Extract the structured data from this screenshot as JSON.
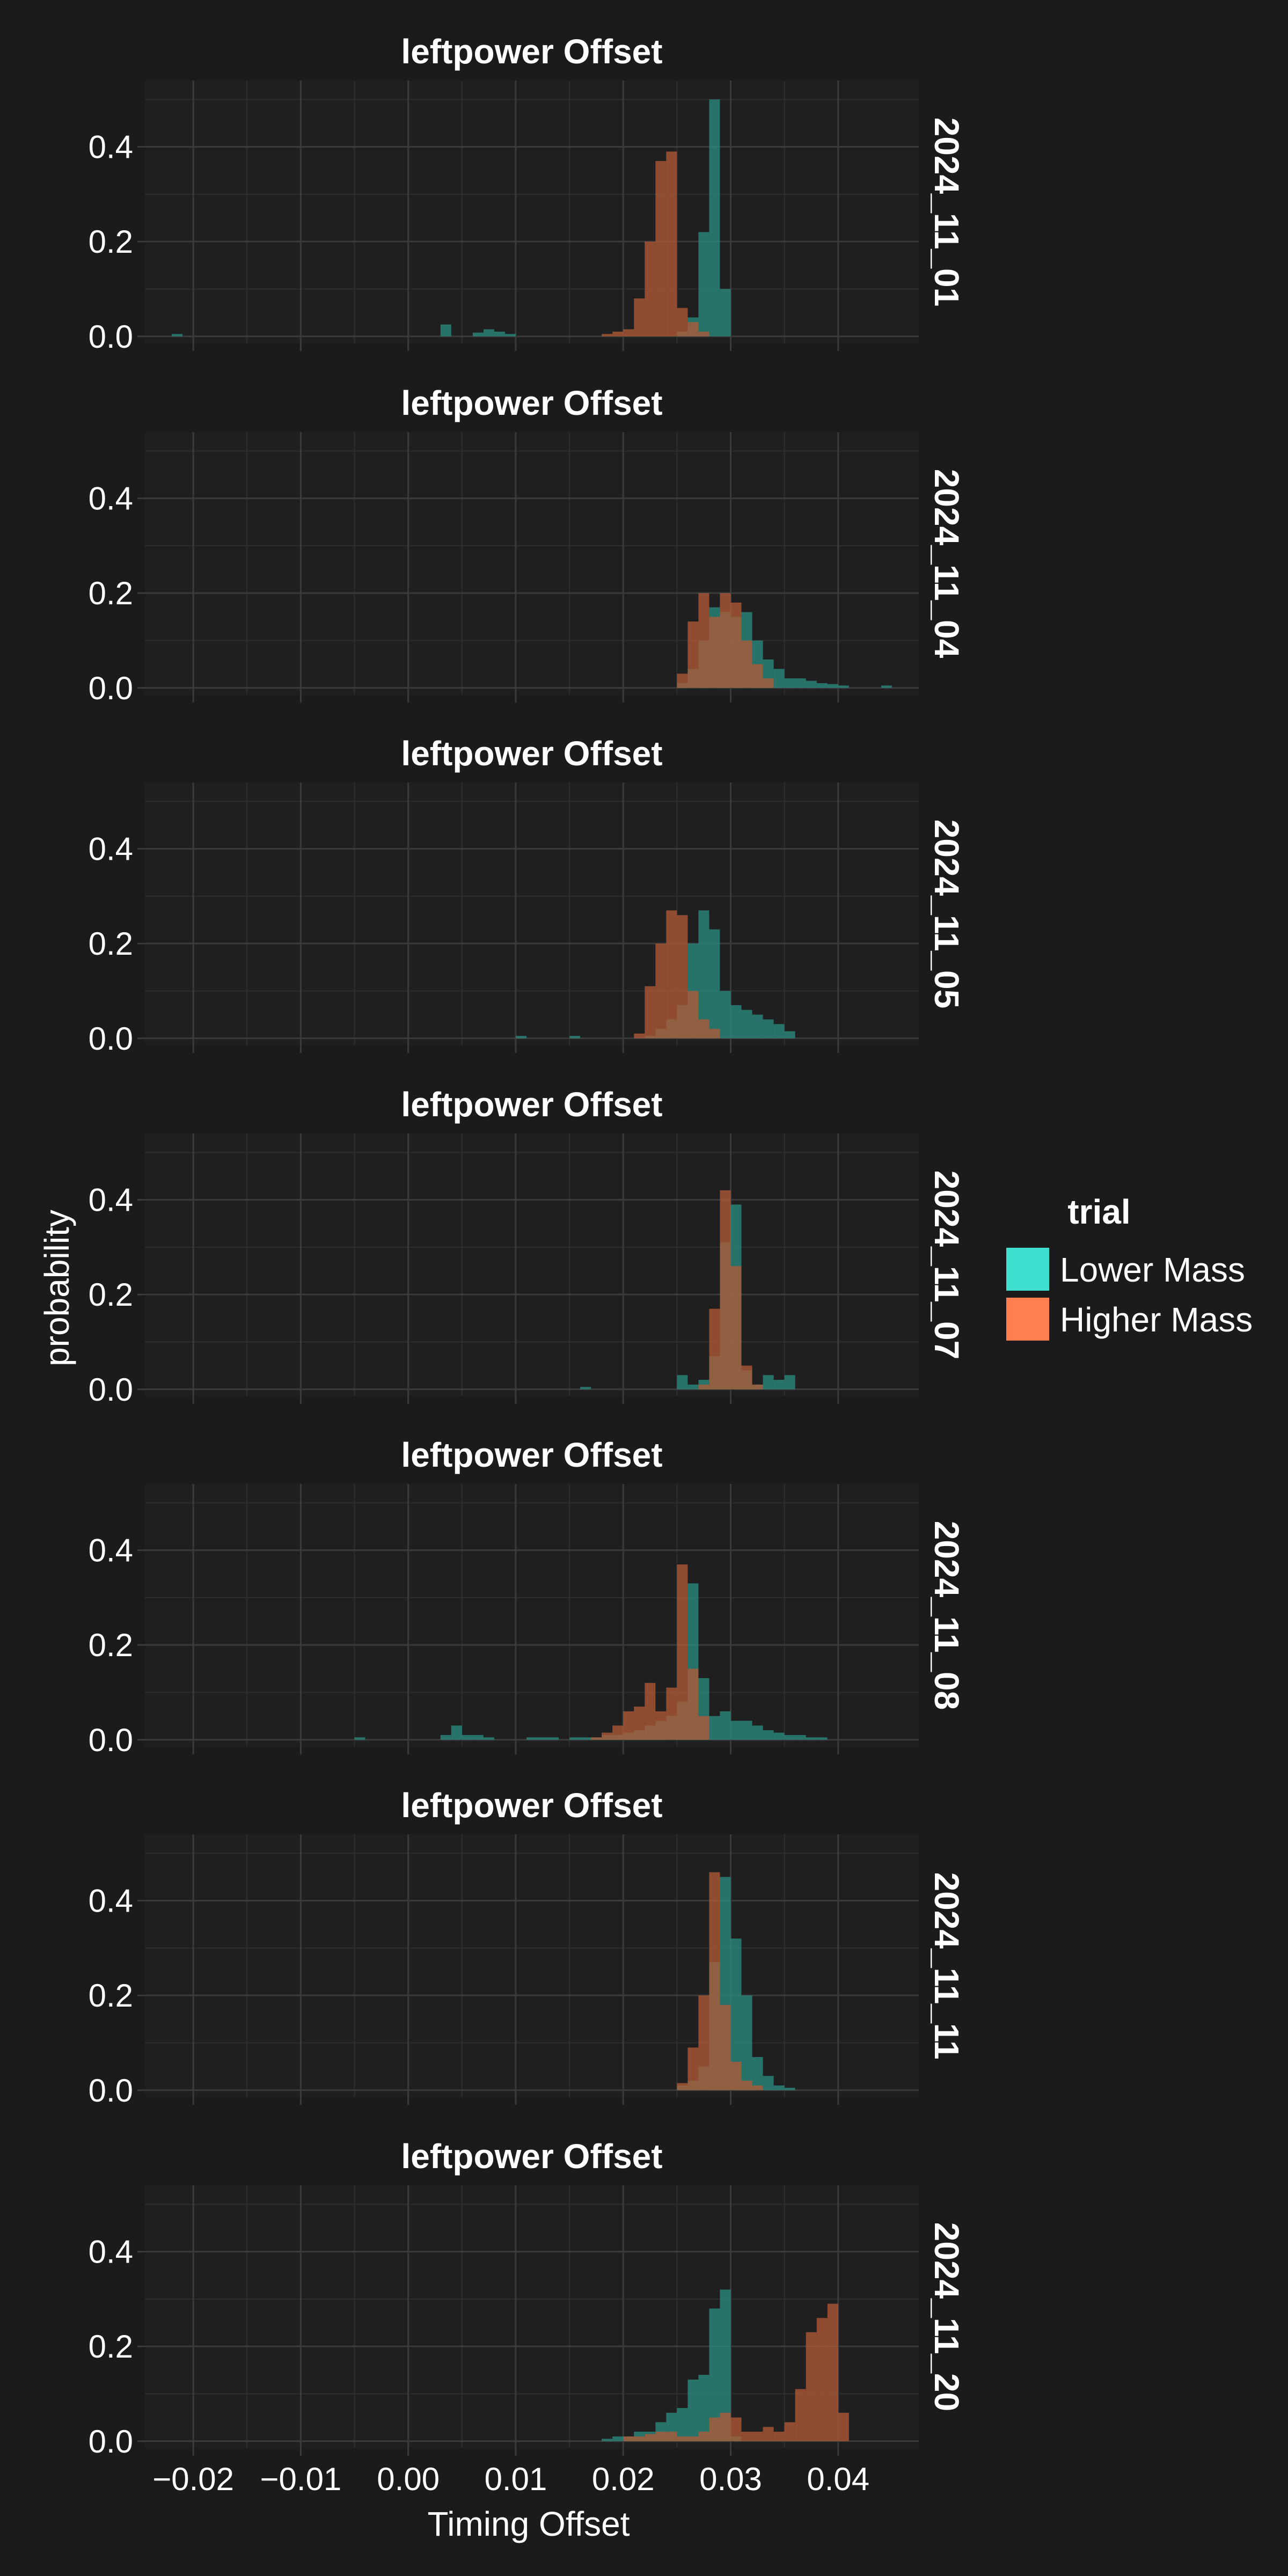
{
  "chart_data": {
    "type": "histogram",
    "facet_titles": [
      "leftpower Offset",
      "leftpower Offset",
      "leftpower Offset",
      "leftpower Offset",
      "leftpower Offset",
      "leftpower Offset",
      "leftpower Offset"
    ],
    "facets": [
      "2024_11_01",
      "2024_11_04",
      "2024_11_05",
      "2024_11_07",
      "2024_11_08",
      "2024_11_11",
      "2024_11_20"
    ],
    "xlabel": "Timing Offset",
    "ylabel": "probability",
    "xlim": [
      -0.0245,
      0.0475
    ],
    "ylim": [
      -0.015,
      0.54
    ],
    "x_ticks": [
      -0.02,
      -0.01,
      0.0,
      0.01,
      0.02,
      0.03,
      0.04
    ],
    "x_tick_labels": [
      "−0.02",
      "−0.01",
      "0.00",
      "0.01",
      "0.02",
      "0.03",
      "0.04"
    ],
    "y_ticks": [
      0.0,
      0.2,
      0.4
    ],
    "y_tick_labels": [
      "0.0",
      "0.2",
      "0.4"
    ],
    "bin_width": 0.001,
    "grid": true,
    "legend": {
      "title": "trial",
      "position": "right",
      "entries": [
        {
          "name": "Lower Mass",
          "color": "#40e0d0"
        },
        {
          "name": "Higher Mass",
          "color": "#ff7f50"
        }
      ]
    },
    "panels": [
      {
        "facet": "2024_11_01",
        "series": [
          {
            "name": "Lower Mass",
            "bins": [
              [
                -0.022,
                0.005
              ],
              [
                0.003,
                0.025
              ],
              [
                0.006,
                0.008
              ],
              [
                0.007,
                0.015
              ],
              [
                0.008,
                0.01
              ],
              [
                0.009,
                0.005
              ],
              [
                0.025,
                0.01
              ],
              [
                0.026,
                0.04
              ],
              [
                0.027,
                0.22
              ],
              [
                0.028,
                0.5
              ],
              [
                0.029,
                0.1
              ]
            ]
          },
          {
            "name": "Higher Mass",
            "bins": [
              [
                0.018,
                0.005
              ],
              [
                0.019,
                0.01
              ],
              [
                0.02,
                0.015
              ],
              [
                0.021,
                0.08
              ],
              [
                0.022,
                0.2
              ],
              [
                0.023,
                0.37
              ],
              [
                0.024,
                0.39
              ],
              [
                0.025,
                0.06
              ],
              [
                0.026,
                0.03
              ],
              [
                0.027,
                0.01
              ]
            ]
          }
        ]
      },
      {
        "facet": "2024_11_04",
        "series": [
          {
            "name": "Lower Mass",
            "bins": [
              [
                0.025,
                0.01
              ],
              [
                0.026,
                0.04
              ],
              [
                0.027,
                0.1
              ],
              [
                0.028,
                0.17
              ],
              [
                0.029,
                0.16
              ],
              [
                0.03,
                0.15
              ],
              [
                0.031,
                0.16
              ],
              [
                0.032,
                0.1
              ],
              [
                0.033,
                0.06
              ],
              [
                0.034,
                0.04
              ],
              [
                0.035,
                0.02
              ],
              [
                0.036,
                0.02
              ],
              [
                0.037,
                0.015
              ],
              [
                0.038,
                0.01
              ],
              [
                0.039,
                0.008
              ],
              [
                0.04,
                0.005
              ],
              [
                0.044,
                0.005
              ]
            ]
          },
          {
            "name": "Higher Mass",
            "bins": [
              [
                0.025,
                0.03
              ],
              [
                0.026,
                0.14
              ],
              [
                0.027,
                0.2
              ],
              [
                0.028,
                0.15
              ],
              [
                0.029,
                0.2
              ],
              [
                0.03,
                0.18
              ],
              [
                0.031,
                0.1
              ],
              [
                0.032,
                0.05
              ],
              [
                0.033,
                0.02
              ]
            ]
          }
        ]
      },
      {
        "facet": "2024_11_05",
        "series": [
          {
            "name": "Lower Mass",
            "bins": [
              [
                0.01,
                0.005
              ],
              [
                0.015,
                0.005
              ],
              [
                0.022,
                0.005
              ],
              [
                0.023,
                0.02
              ],
              [
                0.024,
                0.04
              ],
              [
                0.025,
                0.07
              ],
              [
                0.026,
                0.2
              ],
              [
                0.027,
                0.27
              ],
              [
                0.028,
                0.23
              ],
              [
                0.029,
                0.1
              ],
              [
                0.03,
                0.07
              ],
              [
                0.031,
                0.06
              ],
              [
                0.032,
                0.05
              ],
              [
                0.033,
                0.04
              ],
              [
                0.034,
                0.03
              ],
              [
                0.035,
                0.015
              ]
            ]
          },
          {
            "name": "Higher Mass",
            "bins": [
              [
                0.021,
                0.01
              ],
              [
                0.022,
                0.11
              ],
              [
                0.023,
                0.2
              ],
              [
                0.024,
                0.27
              ],
              [
                0.025,
                0.26
              ],
              [
                0.026,
                0.1
              ],
              [
                0.027,
                0.04
              ],
              [
                0.028,
                0.02
              ]
            ]
          }
        ]
      },
      {
        "facet": "2024_11_07",
        "series": [
          {
            "name": "Lower Mass",
            "bins": [
              [
                0.016,
                0.005
              ],
              [
                0.025,
                0.03
              ],
              [
                0.026,
                0.01
              ],
              [
                0.027,
                0.02
              ],
              [
                0.028,
                0.07
              ],
              [
                0.029,
                0.31
              ],
              [
                0.03,
                0.39
              ],
              [
                0.031,
                0.04
              ],
              [
                0.032,
                0.01
              ],
              [
                0.033,
                0.03
              ],
              [
                0.034,
                0.02
              ],
              [
                0.035,
                0.03
              ]
            ]
          },
          {
            "name": "Higher Mass",
            "bins": [
              [
                0.027,
                0.01
              ],
              [
                0.028,
                0.17
              ],
              [
                0.029,
                0.42
              ],
              [
                0.03,
                0.26
              ],
              [
                0.031,
                0.05
              ],
              [
                0.032,
                0.01
              ]
            ]
          }
        ]
      },
      {
        "facet": "2024_11_08",
        "series": [
          {
            "name": "Lower Mass",
            "bins": [
              [
                -0.005,
                0.005
              ],
              [
                0.003,
                0.01
              ],
              [
                0.004,
                0.03
              ],
              [
                0.005,
                0.01
              ],
              [
                0.006,
                0.01
              ],
              [
                0.007,
                0.005
              ],
              [
                0.011,
                0.005
              ],
              [
                0.012,
                0.005
              ],
              [
                0.013,
                0.005
              ],
              [
                0.015,
                0.005
              ],
              [
                0.016,
                0.005
              ],
              [
                0.017,
                0.005
              ],
              [
                0.018,
                0.01
              ],
              [
                0.019,
                0.01
              ],
              [
                0.02,
                0.015
              ],
              [
                0.021,
                0.02
              ],
              [
                0.022,
                0.03
              ],
              [
                0.023,
                0.04
              ],
              [
                0.024,
                0.05
              ],
              [
                0.025,
                0.08
              ],
              [
                0.026,
                0.33
              ],
              [
                0.027,
                0.13
              ],
              [
                0.028,
                0.05
              ],
              [
                0.029,
                0.06
              ],
              [
                0.03,
                0.04
              ],
              [
                0.031,
                0.04
              ],
              [
                0.032,
                0.03
              ],
              [
                0.033,
                0.02
              ],
              [
                0.034,
                0.015
              ],
              [
                0.035,
                0.01
              ],
              [
                0.036,
                0.01
              ],
              [
                0.037,
                0.005
              ],
              [
                0.038,
                0.005
              ]
            ]
          },
          {
            "name": "Higher Mass",
            "bins": [
              [
                0.017,
                0.005
              ],
              [
                0.018,
                0.015
              ],
              [
                0.019,
                0.03
              ],
              [
                0.02,
                0.06
              ],
              [
                0.021,
                0.07
              ],
              [
                0.022,
                0.12
              ],
              [
                0.023,
                0.06
              ],
              [
                0.024,
                0.11
              ],
              [
                0.025,
                0.37
              ],
              [
                0.026,
                0.15
              ],
              [
                0.027,
                0.05
              ]
            ]
          }
        ]
      },
      {
        "facet": "2024_11_11",
        "series": [
          {
            "name": "Lower Mass",
            "bins": [
              [
                0.025,
                0.01
              ],
              [
                0.026,
                0.02
              ],
              [
                0.027,
                0.05
              ],
              [
                0.028,
                0.27
              ],
              [
                0.029,
                0.45
              ],
              [
                0.03,
                0.32
              ],
              [
                0.031,
                0.2
              ],
              [
                0.032,
                0.07
              ],
              [
                0.033,
                0.03
              ],
              [
                0.034,
                0.01
              ],
              [
                0.035,
                0.005
              ]
            ]
          },
          {
            "name": "Higher Mass",
            "bins": [
              [
                0.025,
                0.015
              ],
              [
                0.026,
                0.09
              ],
              [
                0.027,
                0.2
              ],
              [
                0.028,
                0.46
              ],
              [
                0.029,
                0.18
              ],
              [
                0.03,
                0.06
              ],
              [
                0.031,
                0.02
              ],
              [
                0.032,
                0.01
              ]
            ]
          }
        ]
      },
      {
        "facet": "2024_11_20",
        "series": [
          {
            "name": "Lower Mass",
            "bins": [
              [
                0.018,
                0.005
              ],
              [
                0.019,
                0.01
              ],
              [
                0.02,
                0.01
              ],
              [
                0.021,
                0.02
              ],
              [
                0.022,
                0.02
              ],
              [
                0.023,
                0.04
              ],
              [
                0.024,
                0.06
              ],
              [
                0.025,
                0.07
              ],
              [
                0.026,
                0.13
              ],
              [
                0.027,
                0.14
              ],
              [
                0.028,
                0.28
              ],
              [
                0.029,
                0.32
              ],
              [
                0.03,
                0.01
              ]
            ]
          },
          {
            "name": "Higher Mass",
            "bins": [
              [
                0.02,
                0.01
              ],
              [
                0.021,
                0.01
              ],
              [
                0.022,
                0.015
              ],
              [
                0.023,
                0.02
              ],
              [
                0.024,
                0.02
              ],
              [
                0.025,
                0.01
              ],
              [
                0.026,
                0.01
              ],
              [
                0.027,
                0.02
              ],
              [
                0.028,
                0.05
              ],
              [
                0.029,
                0.06
              ],
              [
                0.03,
                0.05
              ],
              [
                0.031,
                0.02
              ],
              [
                0.032,
                0.02
              ],
              [
                0.033,
                0.03
              ],
              [
                0.034,
                0.02
              ],
              [
                0.035,
                0.04
              ],
              [
                0.036,
                0.11
              ],
              [
                0.037,
                0.23
              ],
              [
                0.038,
                0.26
              ],
              [
                0.039,
                0.29
              ],
              [
                0.04,
                0.06
              ]
            ]
          }
        ]
      }
    ]
  }
}
